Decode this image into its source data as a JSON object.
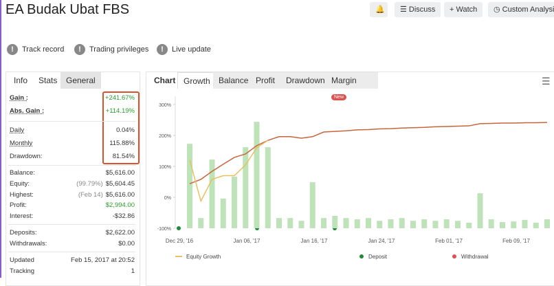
{
  "header": {
    "title": "EA Budak Ubat FBS",
    "buttons": [
      "Discuss",
      "Watch",
      "Custom Analysis"
    ]
  },
  "badges": [
    "Track record",
    "Trading privileges",
    "Live update"
  ],
  "stats": {
    "tabs": [
      "Info",
      "Stats",
      "General"
    ],
    "gain": [
      {
        "label": "Gain :",
        "value": "+241.67%"
      },
      {
        "label": "Abs. Gain :",
        "value": "+114.19%"
      }
    ],
    "rates": [
      {
        "label": "Daily",
        "value": "0.04%"
      },
      {
        "label": "Monthly",
        "value": "115.88%"
      },
      {
        "label": "Drawdown:",
        "value": "81.54%"
      }
    ],
    "account": [
      {
        "label": "Balance:",
        "value": "$5,616.00"
      },
      {
        "label": "Equity:",
        "note": "(99.79%)",
        "value": "$5,604.45"
      },
      {
        "label": "Highest:",
        "note": "(Feb 14)",
        "value": "$5,616.00"
      },
      {
        "label": "Profit:",
        "value": "$2,994.00"
      },
      {
        "label": "Interest:",
        "value": "-$32.86"
      }
    ],
    "funds": [
      {
        "label": "Deposits:",
        "value": "$2,622.00"
      },
      {
        "label": "Withdrawals:",
        "value": "$0.00"
      }
    ],
    "meta": [
      {
        "label": "Updated",
        "value": "Feb 15, 2017 at 20:52"
      },
      {
        "label": "Tracking",
        "value": "1"
      }
    ]
  },
  "chart_panel": {
    "tabs": [
      "Chart",
      "Growth",
      "Balance",
      "Profit",
      "Drawdown",
      "Margin"
    ],
    "new_badge": "New"
  },
  "chart_data": {
    "type": "bar",
    "ylim": [
      -100,
      320
    ],
    "yticks": [
      {
        "value": 300,
        "label": "300%"
      },
      {
        "value": 200,
        "label": "200%"
      },
      {
        "value": 100,
        "label": "100%"
      },
      {
        "value": 0,
        "label": "0%"
      },
      {
        "value": -100,
        "label": "-100%"
      }
    ],
    "xtick_labels": [
      "Dec 29, '16",
      "Jan 06, '17",
      "Jan 16, '17",
      "Jan 24, '17",
      "Feb 01, '17",
      "Feb 09, '17"
    ],
    "categories": [
      null,
      null,
      null,
      null,
      null,
      null,
      null,
      null,
      null,
      null,
      null,
      null,
      null,
      null,
      null,
      null,
      null,
      null,
      null,
      null,
      null,
      null,
      null,
      null,
      null,
      null,
      null,
      null,
      null,
      null,
      null,
      null,
      null
    ],
    "values": [
      173,
      -67,
      122,
      -4,
      67,
      162,
      244,
      162,
      -67,
      -67,
      -76,
      49,
      -67,
      -60,
      -67,
      -71,
      -67,
      -76,
      -71,
      -67,
      -76,
      -71,
      -76,
      -71,
      -76,
      -82,
      13,
      -71,
      -80,
      -78,
      -73,
      -82,
      -71
    ],
    "color": "#bfe3b8",
    "series": [
      {
        "name": "Growth",
        "color": "#c8643c",
        "values": [
          44,
          58,
          84,
          107,
          129,
          140,
          167,
          184,
          196,
          196,
          191,
          196,
          211,
          213,
          215,
          218,
          219,
          221,
          222,
          224,
          225,
          226,
          228,
          229,
          230,
          231,
          238,
          239,
          240,
          240,
          241,
          241,
          242
        ]
      },
      {
        "name": "Equity Growth",
        "color": "#e8c060",
        "values": [
          120,
          -12,
          58,
          70,
          70,
          105,
          160,
          184,
          null,
          null,
          null,
          null,
          null,
          null,
          null,
          null,
          null,
          null,
          null,
          null,
          null,
          null,
          null,
          null,
          null,
          null,
          null,
          null,
          null,
          null,
          null,
          null,
          null
        ]
      }
    ],
    "legend": [
      "Equity Growth",
      "Deposit",
      "Withdrawal"
    ]
  }
}
